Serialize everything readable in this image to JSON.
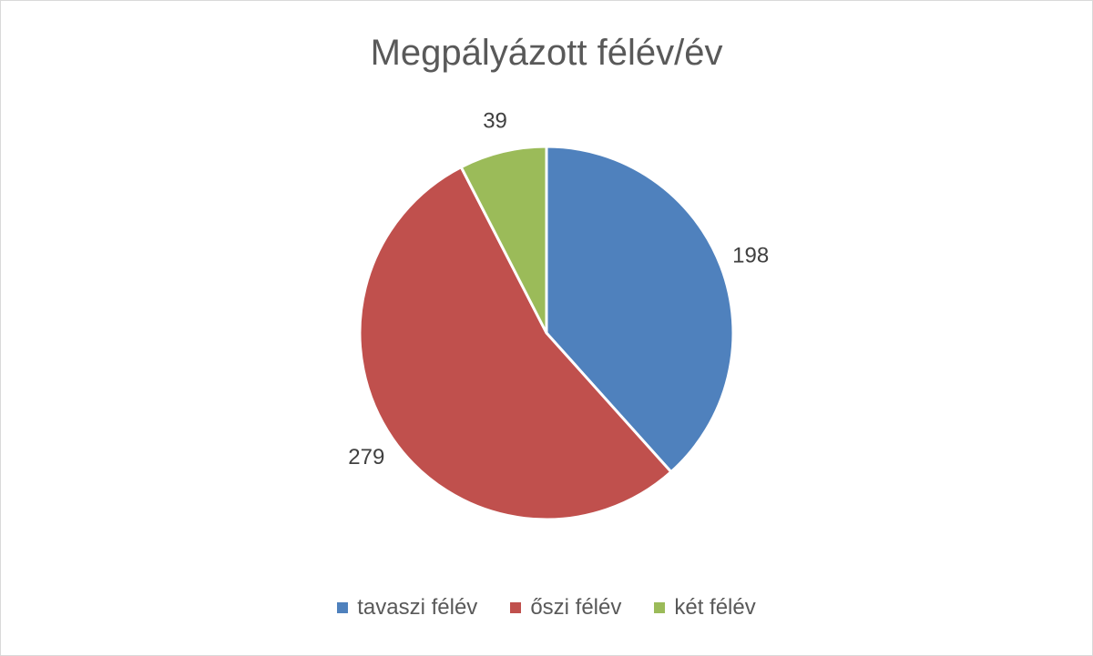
{
  "chart_data": {
    "type": "pie",
    "title": "Megpályázott félév/év",
    "categories": [
      "tavaszi félév",
      "őszi félév",
      "két félév"
    ],
    "values": [
      198,
      279,
      39
    ],
    "colors": [
      "#4f81bd",
      "#c0504d",
      "#9bbb59"
    ],
    "data_labels": [
      "198",
      "279",
      "39"
    ],
    "start_angle_deg": 0,
    "direction": "clockwise",
    "legend_position": "bottom"
  }
}
